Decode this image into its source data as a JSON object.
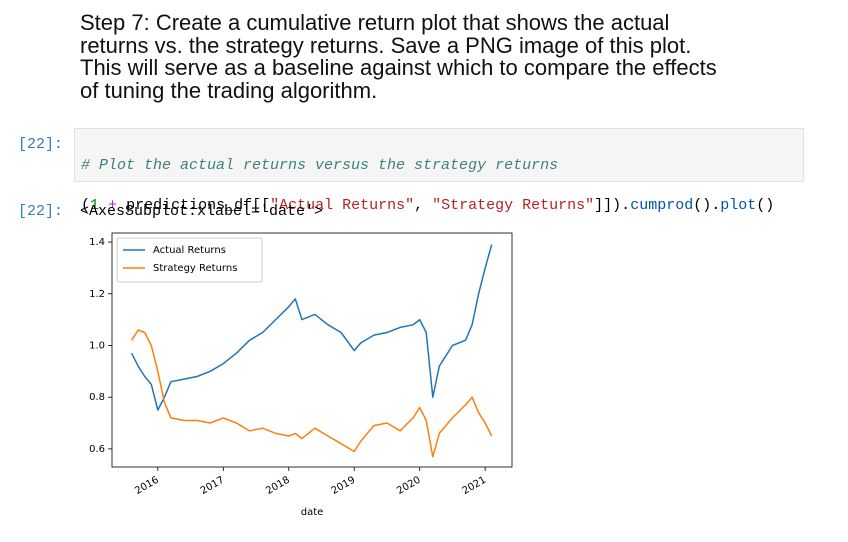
{
  "markdown": {
    "heading_lines": [
      "Step 7: Create a cumulative return plot that shows the actual",
      "returns vs. the strategy returns. Save a PNG image of this plot.",
      "This will serve as a baseline against which to compare the effects",
      "of tuning the trading algorithm."
    ]
  },
  "code_cell": {
    "prompt": "[22]:",
    "comment": "# Plot the actual returns versus the strategy returns",
    "code_tokens": [
      "(",
      "1",
      " ",
      "+",
      " predictions_df[[",
      "\"Actual Returns\"",
      ", ",
      "\"Strategy Returns\"",
      "]]).",
      "cumprod",
      "().",
      "plot",
      "()"
    ]
  },
  "output_cell": {
    "prompt": "[22]:",
    "text": "<AxesSubplot:xlabel='date'>"
  },
  "chart_data": {
    "type": "line",
    "xlabel": "date",
    "legend": "upper left",
    "x": [
      2015.6,
      2015.7,
      2015.8,
      2015.9,
      2016.0,
      2016.1,
      2016.2,
      2016.4,
      2016.6,
      2016.8,
      2017.0,
      2017.2,
      2017.4,
      2017.6,
      2017.8,
      2018.0,
      2018.1,
      2018.2,
      2018.4,
      2018.6,
      2018.8,
      2019.0,
      2019.1,
      2019.3,
      2019.5,
      2019.7,
      2019.9,
      2020.0,
      2020.1,
      2020.2,
      2020.3,
      2020.5,
      2020.7,
      2020.8,
      2020.9,
      2021.0,
      2021.1
    ],
    "series": [
      {
        "name": "Actual Returns",
        "color": "#1f77b4",
        "values": [
          0.97,
          0.92,
          0.88,
          0.85,
          0.75,
          0.8,
          0.86,
          0.87,
          0.88,
          0.9,
          0.93,
          0.97,
          1.02,
          1.05,
          1.1,
          1.15,
          1.18,
          1.1,
          1.12,
          1.08,
          1.05,
          0.98,
          1.01,
          1.04,
          1.05,
          1.07,
          1.08,
          1.1,
          1.05,
          0.8,
          0.92,
          1.0,
          1.02,
          1.08,
          1.2,
          1.3,
          1.39
        ]
      },
      {
        "name": "Strategy Returns",
        "color": "#ff7f0e",
        "values": [
          1.02,
          1.06,
          1.05,
          1.0,
          0.9,
          0.78,
          0.72,
          0.71,
          0.71,
          0.7,
          0.72,
          0.7,
          0.67,
          0.68,
          0.66,
          0.65,
          0.66,
          0.64,
          0.68,
          0.65,
          0.62,
          0.59,
          0.63,
          0.69,
          0.7,
          0.67,
          0.72,
          0.76,
          0.71,
          0.57,
          0.66,
          0.72,
          0.77,
          0.8,
          0.74,
          0.7,
          0.65
        ]
      }
    ],
    "xlim": [
      2015.3,
      2021.41
    ],
    "xticks": [
      2016,
      2017,
      2018,
      2019,
      2020,
      2021
    ],
    "ylim": [
      0.53,
      1.435
    ],
    "yticks": [
      0.6,
      0.8,
      {
        "value": 1,
        "label": "1.0"
      },
      1.2,
      1.4
    ]
  }
}
